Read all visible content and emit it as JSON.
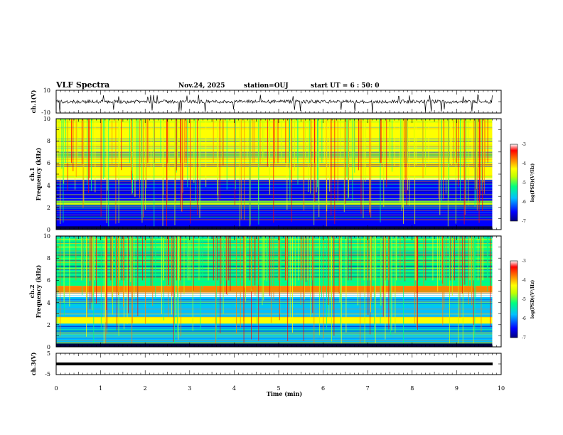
{
  "header": {
    "title": "VLF Spectra",
    "date": "Nov.24, 2025",
    "station": "station=OUJ",
    "start": "start UT =  6 : 50: 0"
  },
  "panels": {
    "ch1_wave": {
      "label": "ch.1(V)",
      "yticks": [
        "10",
        "-10"
      ]
    },
    "ch1_spec": {
      "label_a": "ch.1",
      "label_b": "Frequency (kHz)",
      "yticks": [
        "10",
        "8",
        "6",
        "4",
        "2",
        "0"
      ]
    },
    "ch2_spec": {
      "label_a": "ch.2",
      "label_b": "Frequency (kHz)",
      "yticks": [
        "10",
        "8",
        "6",
        "4",
        "2",
        "0"
      ]
    },
    "ch3_wave": {
      "label": "ch.3(V)",
      "yticks": [
        "5",
        "-5"
      ]
    }
  },
  "xaxis": {
    "label": "Time (min)",
    "ticks": [
      "0",
      "1",
      "2",
      "3",
      "4",
      "5",
      "6",
      "7",
      "8",
      "9",
      "10"
    ]
  },
  "colorbar": {
    "label": "log(PSD)(V²/Hz)",
    "ticks": [
      "-3",
      "-4",
      "-5",
      "-6",
      "-7"
    ],
    "colors": [
      "#000080",
      "#0000ff",
      "#00c0ff",
      "#00ff80",
      "#c0ff00",
      "#ffff00",
      "#ff8000",
      "#ff0000",
      "#ffffff"
    ]
  },
  "chart_data": [
    {
      "type": "line",
      "name": "ch.1(V)",
      "xlabel": "Time (min)",
      "ylabel": "ch.1(V)",
      "xlim": [
        0,
        10
      ],
      "ylim": [
        -10,
        10
      ],
      "description_values": {
        "baseline": 0,
        "noise_amplitude": 1.5,
        "max_spike": -8
      }
    },
    {
      "type": "heatmap",
      "name": "ch.1",
      "xlabel": "Time (min)",
      "ylabel": "Frequency (kHz)",
      "xlim": [
        0,
        9.8
      ],
      "ylim": [
        0,
        10
      ],
      "zlim": [
        -7,
        -3
      ],
      "bands_khz": [
        {
          "f_low": 4.6,
          "f_high": 10,
          "level": -4.5
        },
        {
          "f_low": 2.2,
          "f_high": 2.6,
          "level": -5.0
        },
        {
          "f_low": 0,
          "f_high": 4.5,
          "level": -6.3
        }
      ]
    },
    {
      "type": "heatmap",
      "name": "ch.2",
      "xlabel": "Time (min)",
      "ylabel": "Frequency (kHz)",
      "xlim": [
        0,
        9.8
      ],
      "ylim": [
        0,
        10
      ],
      "zlim": [
        -7,
        -3
      ],
      "bands_khz": [
        {
          "f_low": 4.9,
          "f_high": 5.5,
          "level": -3.6
        },
        {
          "f_low": 2.1,
          "f_high": 2.7,
          "level": -4.3
        },
        {
          "f_low": 5.5,
          "f_high": 10,
          "level": -5.2
        },
        {
          "f_low": 0,
          "f_high": 4.5,
          "level": -5.6
        }
      ]
    },
    {
      "type": "line",
      "name": "ch.3(V)",
      "xlabel": "Time (min)",
      "ylabel": "ch.3(V)",
      "xlim": [
        0,
        10
      ],
      "ylim": [
        -5,
        5
      ],
      "description_values": {
        "constant_level": -1
      }
    }
  ]
}
